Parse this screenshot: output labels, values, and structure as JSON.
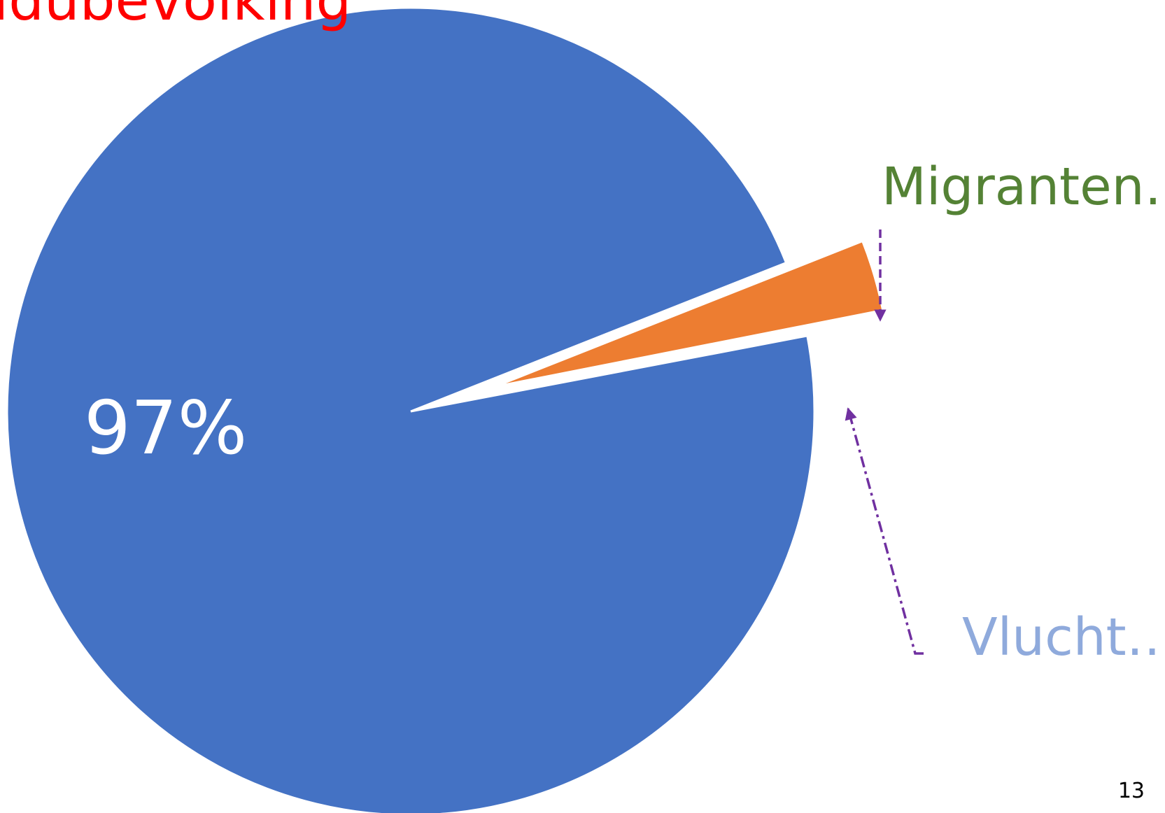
{
  "chart_data": {
    "type": "pie",
    "title": "ldubevolking",
    "categories": [
      null,
      "Migranten…",
      "Vlucht…"
    ],
    "values": [
      97,
      2.9,
      0.1
    ],
    "value_labels": [
      "97%",
      null,
      null
    ],
    "colors": [
      "#4472c4",
      "#ed7d31",
      "#000000"
    ],
    "label_colors": [
      "#ffffff",
      "#548235",
      "#8faadc"
    ],
    "page_number": "13"
  }
}
